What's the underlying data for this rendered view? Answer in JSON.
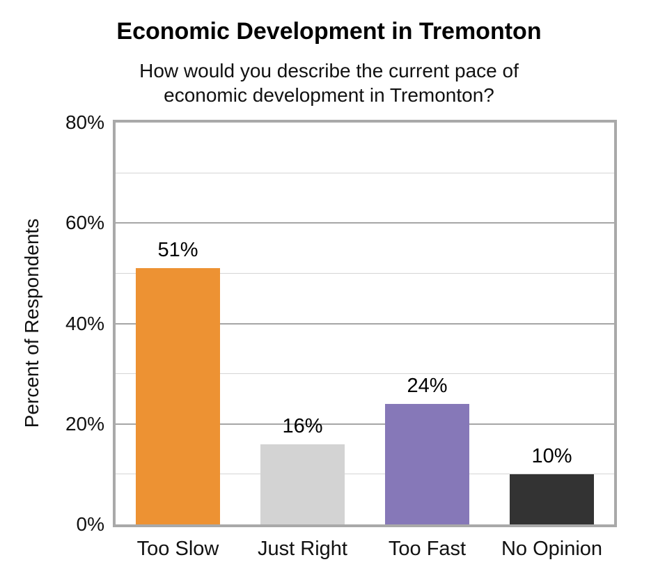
{
  "chart_data": {
    "type": "bar",
    "title": "Economic Development in Tremonton",
    "subtitle_line1": "How would you describe the current pace of",
    "subtitle_line2": "economic development in Tremonton?",
    "ylabel": "Percent of Respondents",
    "xlabel": "",
    "categories": [
      "Too Slow",
      "Just Right",
      "Too Fast",
      "No Opinion"
    ],
    "values": [
      51,
      16,
      24,
      10
    ],
    "data_labels": [
      "51%",
      "16%",
      "24%",
      "10%"
    ],
    "bar_colors": [
      "#ED9233",
      "#D3D3D3",
      "#8678B8",
      "#333333"
    ],
    "ylim": [
      0,
      80
    ],
    "y_major_step": 20,
    "y_minor_step": 10,
    "tick_labels": [
      "0%",
      "20%",
      "40%",
      "60%",
      "80%"
    ],
    "grid": "on",
    "legend": "none",
    "colors": {
      "plot_border": "#A9A9A9",
      "major_gridline": "#A6A6A6",
      "minor_gridline": "#D5D5D5",
      "text": "#000000"
    }
  }
}
